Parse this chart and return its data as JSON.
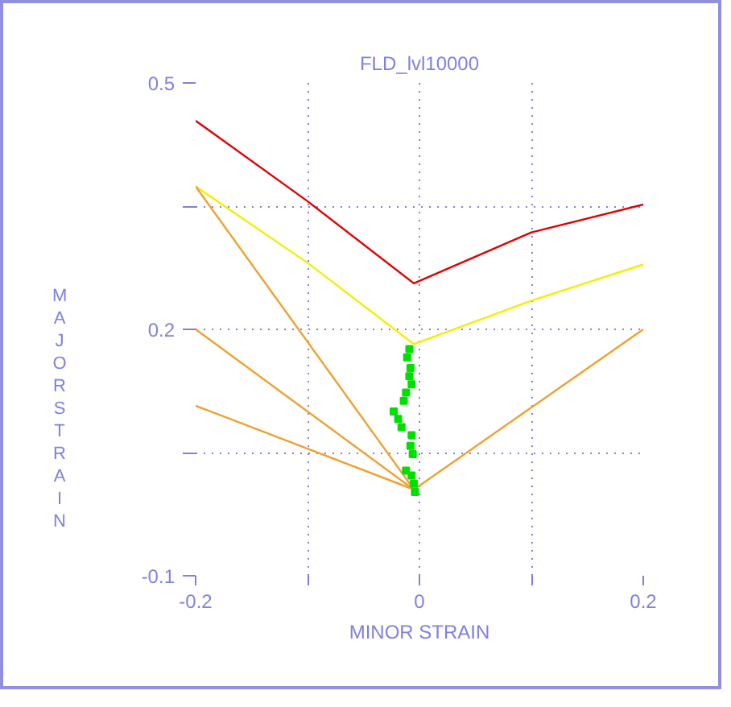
{
  "chart_data": {
    "type": "line",
    "title": "FLD_lvl10000",
    "xlabel": "MINOR STRAIN",
    "ylabel": "MAJOR STRAIN",
    "xlim": [
      -0.2,
      0.2
    ],
    "ylim": [
      -0.1,
      0.5
    ],
    "xticks": [
      -0.2,
      {
        "value": -0.1,
        "label": null
      },
      0,
      {
        "value": 0.1,
        "label": null
      },
      0.2
    ],
    "yticks": [
      -0.1,
      {
        "value": 0.05,
        "label": null
      },
      0.2,
      {
        "value": 0.35,
        "label": null
      },
      0.5
    ],
    "grid": true,
    "line_style": "solid",
    "series": [
      {
        "color": "#e00000",
        "x": [
          -0.2,
          -0.1,
          -0.005,
          0.1,
          0.2
        ],
        "values": [
          0.454,
          0.356,
          0.256,
          0.318,
          0.352
        ]
      },
      {
        "color": "#f0f000",
        "x": [
          -0.2,
          -0.1,
          -0.005,
          0.1,
          0.2
        ],
        "values": [
          0.374,
          0.281,
          0.182,
          0.235,
          0.279
        ]
      },
      {
        "color": "#f0a030",
        "x": [
          -0.2,
          -0.005
        ],
        "values": [
          0.374,
          0.005
        ]
      },
      {
        "color": "#f0a030",
        "x": [
          -0.2,
          -0.005
        ],
        "values": [
          0.2,
          0.005
        ]
      },
      {
        "color": "#f0a030",
        "x": [
          -0.2,
          -0.005
        ],
        "values": [
          0.107,
          0.005
        ]
      },
      {
        "color": "#f0a030",
        "x": [
          -0.005,
          0.2
        ],
        "values": [
          0.005,
          0.2
        ]
      },
      {
        "type": "scatter",
        "marker": "square",
        "color": "#00e000",
        "x": [
          -0.009,
          -0.011,
          -0.008,
          -0.009,
          -0.007,
          -0.012,
          -0.014,
          -0.023,
          -0.019,
          -0.016,
          -0.007,
          -0.008,
          -0.006,
          -0.012,
          -0.007,
          -0.005,
          -0.004
        ],
        "values": [
          0.176,
          0.166,
          0.153,
          0.143,
          0.133,
          0.123,
          0.113,
          0.1,
          0.091,
          0.081,
          0.071,
          0.058,
          0.048,
          0.028,
          0.022,
          0.012,
          0.002
        ]
      }
    ]
  }
}
